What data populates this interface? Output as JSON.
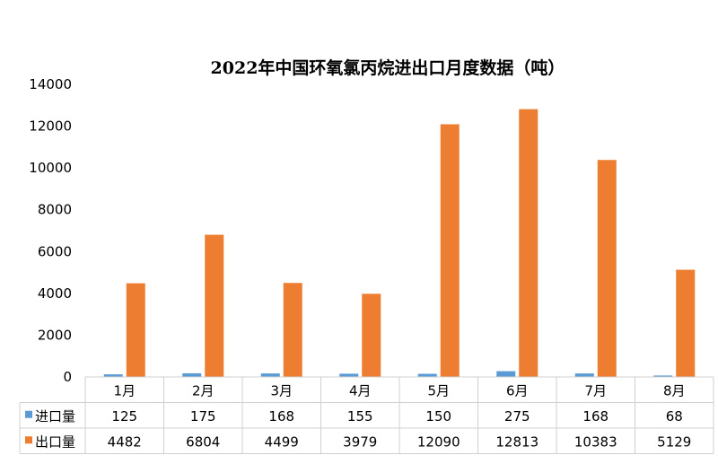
{
  "chart_data": {
    "type": "bar",
    "title": "2022年中国环氧氯丙烷进出口月度数据（吨）",
    "categories": [
      "1月",
      "2月",
      "3月",
      "4月",
      "5月",
      "6月",
      "7月",
      "8月"
    ],
    "series": [
      {
        "name": "进口量",
        "color": "#5b9bd5",
        "values": [
          125,
          175,
          168,
          155,
          150,
          275,
          168,
          68
        ]
      },
      {
        "name": "出口量",
        "color": "#ed7d31",
        "values": [
          4482,
          6804,
          4499,
          3979,
          12090,
          12813,
          10383,
          5129
        ]
      }
    ],
    "yticks": [
      "0",
      "2000",
      "4000",
      "6000",
      "8000",
      "10000",
      "12000",
      "14000"
    ],
    "ylim": [
      0,
      14000
    ],
    "legend": "data-table",
    "grid": false
  }
}
